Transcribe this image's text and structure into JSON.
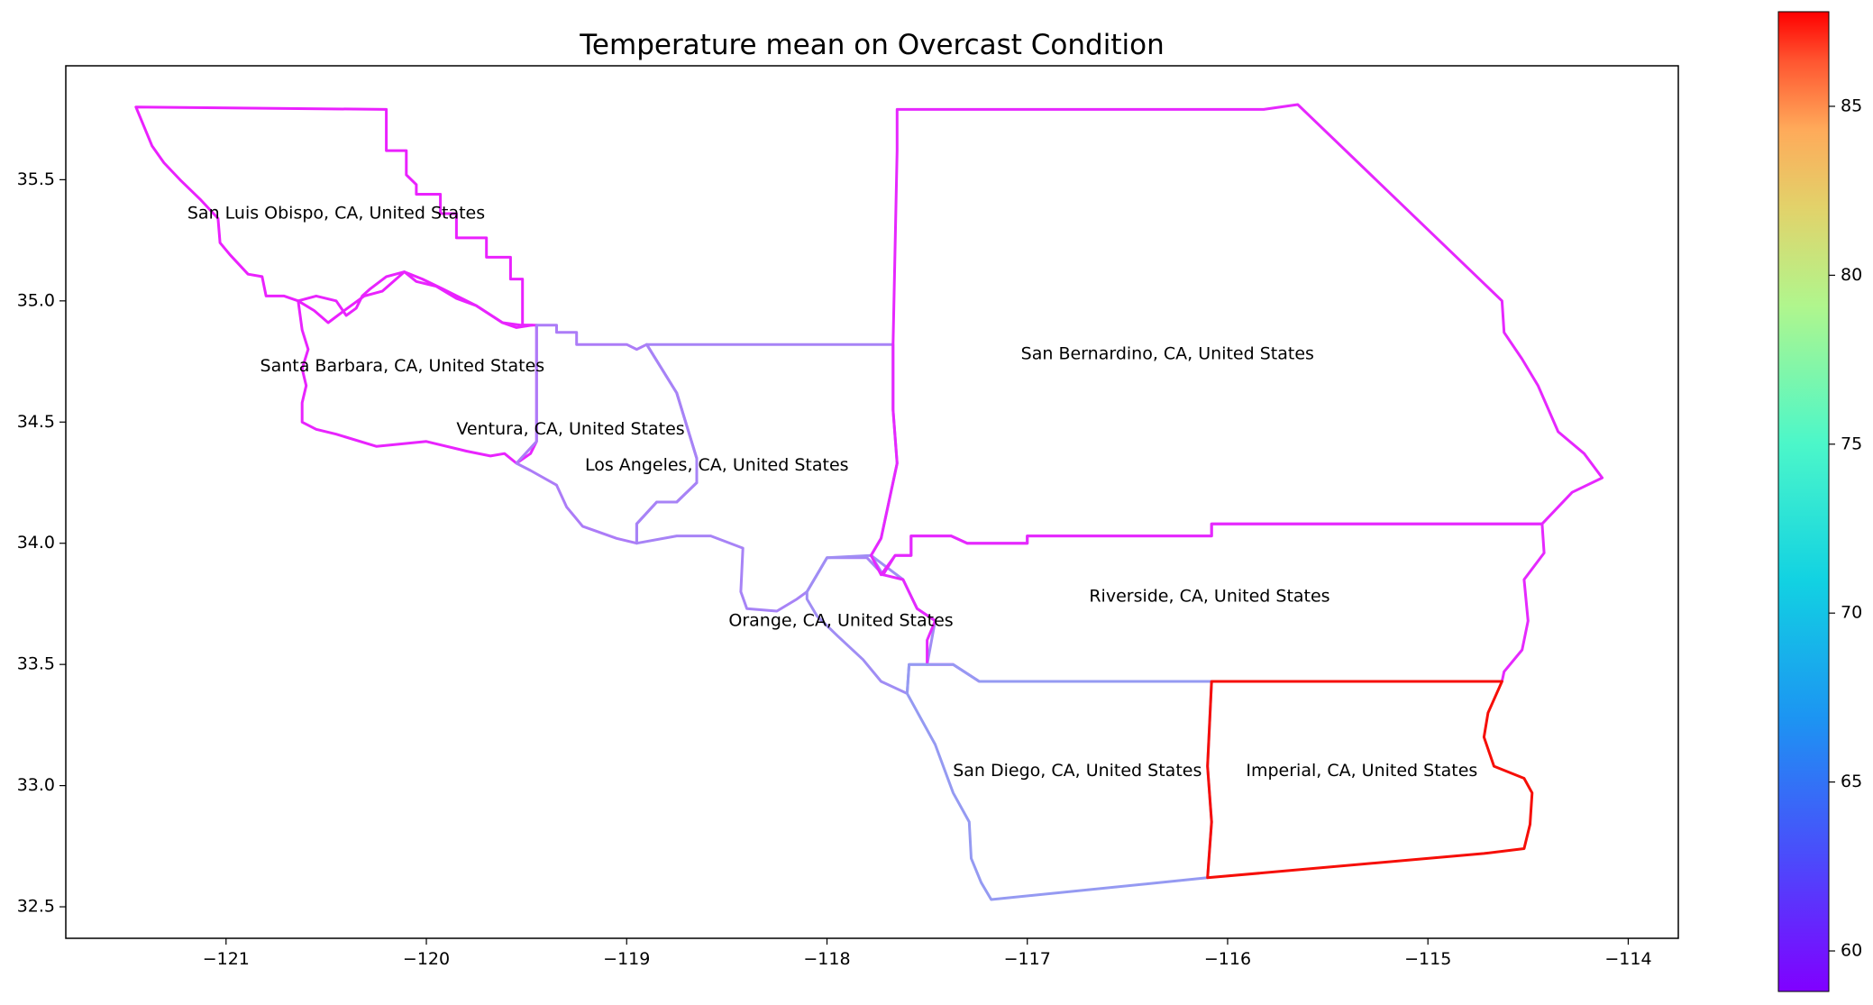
{
  "chart_data": {
    "type": "choropleth-map",
    "title": "Temperature mean on Overcast Condition",
    "xlabel": "",
    "ylabel": "",
    "xlim": [
      -121.8,
      -113.75
    ],
    "ylim": [
      32.37,
      35.97
    ],
    "x_ticks": [
      -121,
      -120,
      -119,
      -118,
      -117,
      -116,
      -115,
      -114
    ],
    "x_tick_labels": [
      "−121",
      "−120",
      "−119",
      "−118",
      "−117",
      "−116",
      "−115",
      "−114"
    ],
    "y_ticks": [
      32.5,
      33.0,
      33.5,
      34.0,
      34.5,
      35.0,
      35.5
    ],
    "y_tick_labels": [
      "32.5",
      "33.0",
      "33.5",
      "34.0",
      "34.5",
      "35.0",
      "35.5"
    ],
    "colormap": "rainbow",
    "colorbar": {
      "min": 58.8,
      "max": 87.8,
      "ticks": [
        60,
        65,
        70,
        75,
        80,
        85
      ],
      "tick_labels": [
        "60",
        "65",
        "70",
        "75",
        "80",
        "85"
      ]
    },
    "regions": [
      {
        "name": "San Luis Obispo, CA, United States",
        "label_lon": -120.45,
        "label_lat": 35.36,
        "value": 60.0,
        "boundary": [
          [
            -121.45,
            35.8
          ],
          [
            -120.2,
            35.79
          ],
          [
            -120.2,
            35.62
          ],
          [
            -120.1,
            35.62
          ],
          [
            -120.1,
            35.52
          ],
          [
            -120.05,
            35.48
          ],
          [
            -120.05,
            35.44
          ],
          [
            -119.93,
            35.44
          ],
          [
            -119.93,
            35.36
          ],
          [
            -119.85,
            35.36
          ],
          [
            -119.85,
            35.26
          ],
          [
            -119.7,
            35.26
          ],
          [
            -119.7,
            35.18
          ],
          [
            -119.58,
            35.18
          ],
          [
            -119.58,
            35.09
          ],
          [
            -119.52,
            35.09
          ],
          [
            -119.52,
            34.9
          ],
          [
            -119.47,
            34.9
          ],
          [
            -119.55,
            34.89
          ],
          [
            -119.62,
            34.91
          ],
          [
            -119.75,
            34.98
          ],
          [
            -119.92,
            35.05
          ],
          [
            -120.02,
            35.09
          ],
          [
            -120.11,
            35.12
          ],
          [
            -120.22,
            35.04
          ],
          [
            -120.31,
            35.02
          ],
          [
            -120.41,
            34.96
          ],
          [
            -120.49,
            34.91
          ],
          [
            -120.56,
            34.96
          ],
          [
            -120.64,
            35.0
          ],
          [
            -120.71,
            35.02
          ],
          [
            -120.8,
            35.02
          ],
          [
            -120.82,
            35.1
          ],
          [
            -120.89,
            35.11
          ],
          [
            -120.98,
            35.19
          ],
          [
            -121.03,
            35.24
          ],
          [
            -121.04,
            35.34
          ],
          [
            -121.13,
            35.42
          ],
          [
            -121.23,
            35.5
          ],
          [
            -121.31,
            35.57
          ],
          [
            -121.37,
            35.64
          ],
          [
            -121.41,
            35.72
          ],
          [
            -121.45,
            35.8
          ]
        ]
      },
      {
        "name": "Santa Barbara, CA, United States",
        "label_lon": -120.12,
        "label_lat": 34.73,
        "value": 60.1,
        "boundary": [
          [
            -120.64,
            35.0
          ],
          [
            -120.55,
            35.02
          ],
          [
            -120.45,
            35.0
          ],
          [
            -120.4,
            34.94
          ],
          [
            -120.35,
            34.97
          ],
          [
            -120.32,
            35.02
          ],
          [
            -120.28,
            35.05
          ],
          [
            -120.2,
            35.1
          ],
          [
            -120.11,
            35.12
          ],
          [
            -120.05,
            35.08
          ],
          [
            -119.95,
            35.06
          ],
          [
            -119.85,
            35.01
          ],
          [
            -119.75,
            34.98
          ],
          [
            -119.62,
            34.91
          ],
          [
            -119.53,
            34.9
          ],
          [
            -119.45,
            34.9
          ],
          [
            -119.45,
            34.42
          ],
          [
            -119.48,
            34.37
          ],
          [
            -119.55,
            34.33
          ],
          [
            -119.61,
            34.37
          ],
          [
            -119.68,
            34.36
          ],
          [
            -119.8,
            34.38
          ],
          [
            -120.0,
            34.42
          ],
          [
            -120.25,
            34.4
          ],
          [
            -120.45,
            34.45
          ],
          [
            -120.55,
            34.47
          ],
          [
            -120.62,
            34.5
          ],
          [
            -120.62,
            34.58
          ],
          [
            -120.6,
            34.65
          ],
          [
            -120.62,
            34.72
          ],
          [
            -120.59,
            34.8
          ],
          [
            -120.62,
            34.88
          ],
          [
            -120.64,
            35.0
          ]
        ]
      },
      {
        "name": "Ventura, CA, United States",
        "label_lon": -119.28,
        "label_lat": 34.47,
        "value": 63.5,
        "boundary": [
          [
            -119.45,
            34.9
          ],
          [
            -119.35,
            34.9
          ],
          [
            -119.35,
            34.87
          ],
          [
            -119.25,
            34.87
          ],
          [
            -119.25,
            34.82
          ],
          [
            -119.0,
            34.82
          ],
          [
            -118.95,
            34.8
          ],
          [
            -118.9,
            34.82
          ],
          [
            -118.75,
            34.62
          ],
          [
            -118.65,
            34.35
          ],
          [
            -118.65,
            34.25
          ],
          [
            -118.75,
            34.17
          ],
          [
            -118.85,
            34.17
          ],
          [
            -118.95,
            34.08
          ],
          [
            -118.95,
            34.0
          ],
          [
            -119.05,
            34.02
          ],
          [
            -119.22,
            34.07
          ],
          [
            -119.3,
            34.15
          ],
          [
            -119.35,
            34.24
          ],
          [
            -119.48,
            34.3
          ],
          [
            -119.55,
            34.33
          ],
          [
            -119.45,
            34.42
          ],
          [
            -119.45,
            34.9
          ]
        ]
      },
      {
        "name": "Los Angeles, CA, United States",
        "label_lon": -118.55,
        "label_lat": 34.32,
        "value": 63.8,
        "boundary": [
          [
            -118.9,
            34.82
          ],
          [
            -117.67,
            34.82
          ],
          [
            -117.67,
            34.55
          ],
          [
            -117.65,
            34.33
          ],
          [
            -117.73,
            34.02
          ],
          [
            -117.78,
            33.95
          ],
          [
            -117.72,
            33.87
          ],
          [
            -117.8,
            33.94
          ],
          [
            -118.0,
            33.94
          ],
          [
            -118.1,
            33.8
          ],
          [
            -118.15,
            33.77
          ],
          [
            -118.25,
            33.72
          ],
          [
            -118.4,
            33.73
          ],
          [
            -118.43,
            33.8
          ],
          [
            -118.42,
            33.98
          ],
          [
            -118.58,
            34.03
          ],
          [
            -118.75,
            34.03
          ],
          [
            -118.95,
            34.0
          ],
          [
            -118.95,
            34.08
          ],
          [
            -118.85,
            34.17
          ],
          [
            -118.75,
            34.17
          ],
          [
            -118.65,
            34.25
          ],
          [
            -118.65,
            34.35
          ],
          [
            -118.75,
            34.62
          ],
          [
            -118.9,
            34.82
          ]
        ]
      },
      {
        "name": "Orange, CA, United States",
        "label_lon": -117.93,
        "label_lat": 33.68,
        "value": 64.2,
        "boundary": [
          [
            -118.1,
            33.77
          ],
          [
            -118.05,
            33.7
          ],
          [
            -117.95,
            33.62
          ],
          [
            -117.82,
            33.52
          ],
          [
            -117.73,
            33.43
          ],
          [
            -117.6,
            33.38
          ],
          [
            -117.59,
            33.5
          ],
          [
            -117.5,
            33.5
          ],
          [
            -117.46,
            33.68
          ],
          [
            -117.55,
            33.73
          ],
          [
            -117.62,
            33.85
          ],
          [
            -117.78,
            33.95
          ],
          [
            -118.0,
            33.94
          ],
          [
            -118.1,
            33.8
          ],
          [
            -118.1,
            33.77
          ]
        ]
      },
      {
        "name": "San Bernardino, CA, United States",
        "label_lon": -116.3,
        "label_lat": 34.78,
        "value": 60.2,
        "boundary": [
          [
            -117.65,
            35.79
          ],
          [
            -115.82,
            35.79
          ],
          [
            -115.65,
            35.81
          ],
          [
            -114.63,
            35.0
          ],
          [
            -114.62,
            34.87
          ],
          [
            -114.53,
            34.76
          ],
          [
            -114.45,
            34.65
          ],
          [
            -114.35,
            34.46
          ],
          [
            -114.22,
            34.37
          ],
          [
            -114.13,
            34.27
          ],
          [
            -114.28,
            34.21
          ],
          [
            -114.43,
            34.08
          ],
          [
            -116.08,
            34.08
          ],
          [
            -116.08,
            34.03
          ],
          [
            -117.0,
            34.03
          ],
          [
            -117.0,
            34.0
          ],
          [
            -117.3,
            34.0
          ],
          [
            -117.38,
            34.03
          ],
          [
            -117.58,
            34.03
          ],
          [
            -117.58,
            33.95
          ],
          [
            -117.66,
            33.95
          ],
          [
            -117.73,
            33.87
          ],
          [
            -117.78,
            33.95
          ],
          [
            -117.73,
            34.02
          ],
          [
            -117.65,
            34.33
          ],
          [
            -117.67,
            34.55
          ],
          [
            -117.67,
            34.82
          ],
          [
            -117.65,
            35.62
          ],
          [
            -117.65,
            35.79
          ]
        ]
      },
      {
        "name": "Riverside, CA, United States",
        "label_lon": -116.09,
        "label_lat": 33.78,
        "value": 60.3,
        "boundary": [
          [
            -117.72,
            33.87
          ],
          [
            -117.66,
            33.95
          ],
          [
            -117.58,
            33.95
          ],
          [
            -117.58,
            34.03
          ],
          [
            -117.38,
            34.03
          ],
          [
            -117.3,
            34.0
          ],
          [
            -117.0,
            34.0
          ],
          [
            -117.0,
            34.03
          ],
          [
            -116.08,
            34.03
          ],
          [
            -116.08,
            34.08
          ],
          [
            -114.43,
            34.08
          ],
          [
            -114.42,
            33.96
          ],
          [
            -114.52,
            33.85
          ],
          [
            -114.5,
            33.68
          ],
          [
            -114.53,
            33.56
          ],
          [
            -114.62,
            33.47
          ],
          [
            -114.63,
            33.43
          ],
          [
            -116.08,
            33.43
          ],
          [
            -117.24,
            33.43
          ],
          [
            -117.37,
            33.5
          ],
          [
            -117.5,
            33.5
          ],
          [
            -117.5,
            33.6
          ],
          [
            -117.46,
            33.68
          ],
          [
            -117.55,
            33.73
          ],
          [
            -117.62,
            33.85
          ],
          [
            -117.72,
            33.87
          ]
        ]
      },
      {
        "name": "San Diego, CA, United States",
        "label_lon": -116.75,
        "label_lat": 33.06,
        "value": 64.8,
        "boundary": [
          [
            -117.6,
            33.38
          ],
          [
            -117.46,
            33.17
          ],
          [
            -117.37,
            32.97
          ],
          [
            -117.29,
            32.85
          ],
          [
            -117.28,
            32.7
          ],
          [
            -117.23,
            32.6
          ],
          [
            -117.18,
            32.53
          ],
          [
            -116.1,
            32.62
          ],
          [
            -116.08,
            32.85
          ],
          [
            -116.1,
            33.08
          ],
          [
            -116.08,
            33.43
          ],
          [
            -117.24,
            33.43
          ],
          [
            -117.37,
            33.5
          ],
          [
            -117.5,
            33.5
          ],
          [
            -117.59,
            33.5
          ],
          [
            -117.6,
            33.38
          ]
        ]
      },
      {
        "name": "Imperial, CA, United States",
        "label_lon": -115.33,
        "label_lat": 33.06,
        "value": 87.3,
        "boundary": [
          [
            -116.08,
            33.43
          ],
          [
            -114.63,
            33.43
          ],
          [
            -114.7,
            33.3
          ],
          [
            -114.72,
            33.2
          ],
          [
            -114.67,
            33.08
          ],
          [
            -114.52,
            33.03
          ],
          [
            -114.48,
            32.97
          ],
          [
            -114.49,
            32.84
          ],
          [
            -114.52,
            32.74
          ],
          [
            -114.72,
            32.72
          ],
          [
            -116.1,
            32.62
          ],
          [
            -116.08,
            32.85
          ],
          [
            -116.1,
            33.08
          ],
          [
            -116.08,
            33.43
          ]
        ]
      }
    ]
  }
}
